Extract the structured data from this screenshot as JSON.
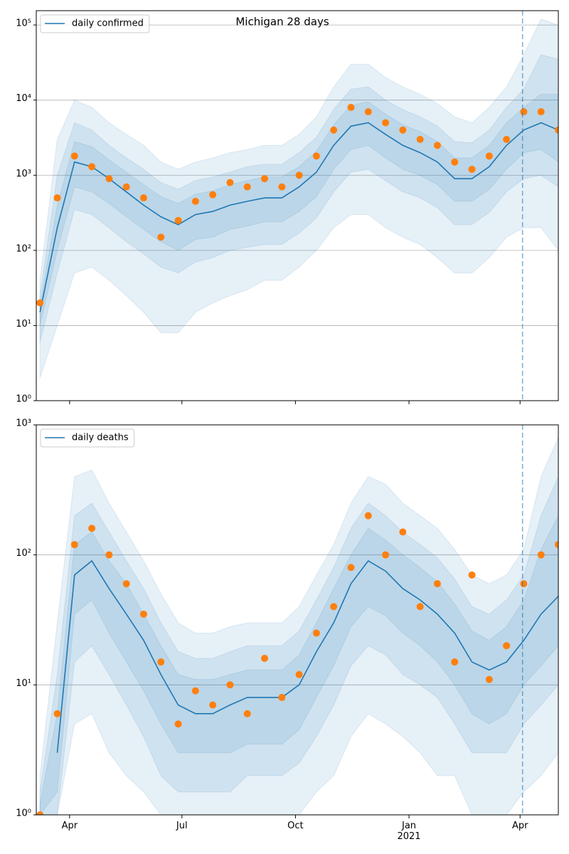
{
  "chart_data": [
    {
      "type": "line",
      "title": "Michigan 28 days",
      "log_y": true,
      "grid": true,
      "legend": "upper left",
      "sharex": true,
      "xlim": [
        -27,
        396
      ],
      "ylim": [
        1,
        155000
      ],
      "yticks": [
        {
          "value": 1,
          "label": "10⁰"
        },
        {
          "value": 10,
          "label": "10¹"
        },
        {
          "value": 100,
          "label": "10²"
        },
        {
          "value": 1000,
          "label": "10³"
        },
        {
          "value": 10000,
          "label": "10⁴"
        },
        {
          "value": 100000,
          "label": "10⁵"
        }
      ],
      "vline_x": 367,
      "x": [
        -24,
        -10,
        4,
        18,
        32,
        46,
        60,
        74,
        88,
        102,
        116,
        130,
        144,
        158,
        172,
        186,
        200,
        214,
        228,
        242,
        256,
        270,
        284,
        298,
        312,
        326,
        340,
        354,
        368,
        382,
        396
      ],
      "series": [
        {
          "name": "daily confirmed",
          "color": "#1f77b4",
          "values": [
            15,
            200,
            1500,
            1300,
            900,
            600,
            400,
            280,
            220,
            300,
            330,
            400,
            450,
            500,
            500,
            700,
            1100,
            2500,
            4500,
            5000,
            3500,
            2500,
            2000,
            1500,
            900,
            900,
            1300,
            2500,
            4000,
            5000,
            4000
          ]
        }
      ],
      "scatter": {
        "color": "#ff7f0e",
        "values": [
          20,
          500,
          1800,
          1300,
          900,
          700,
          500,
          150,
          250,
          450,
          550,
          800,
          700,
          900,
          700,
          1000,
          1800,
          4000,
          8000,
          7000,
          5000,
          4000,
          3000,
          2500,
          1500,
          1200,
          1800,
          3000,
          7000,
          7000,
          4000
        ]
      },
      "band_color": "#1f77b4",
      "bands": [
        {
          "lower": [
            2,
            10,
            50,
            60,
            40,
            25,
            15,
            8,
            8,
            15,
            20,
            25,
            30,
            40,
            40,
            60,
            100,
            200,
            300,
            300,
            200,
            150,
            120,
            80,
            50,
            50,
            80,
            150,
            200,
            200,
            100
          ],
          "upper": [
            40,
            3000,
            10000,
            8000,
            5000,
            3500,
            2500,
            1500,
            1200,
            1500,
            1700,
            2000,
            2200,
            2500,
            2500,
            3500,
            6000,
            15000,
            30000,
            30000,
            20000,
            15000,
            12000,
            9000,
            6000,
            5000,
            8000,
            15000,
            40000,
            120000,
            100000
          ]
        },
        {
          "lower": [
            6,
            50,
            350,
            300,
            200,
            130,
            90,
            60,
            50,
            70,
            80,
            100,
            110,
            120,
            120,
            170,
            270,
            600,
            1100,
            1200,
            850,
            600,
            500,
            370,
            220,
            220,
            320,
            600,
            900,
            1000,
            700
          ],
          "upper": [
            25,
            1000,
            5000,
            4000,
            2500,
            1700,
            1200,
            800,
            650,
            850,
            950,
            1100,
            1300,
            1400,
            1400,
            2000,
            3200,
            7500,
            14000,
            15000,
            10000,
            7500,
            6000,
            4500,
            2800,
            2700,
            4000,
            8000,
            14000,
            40000,
            35000
          ]
        },
        {
          "lower": [
            10,
            100,
            700,
            600,
            420,
            280,
            190,
            130,
            100,
            140,
            150,
            190,
            210,
            240,
            240,
            330,
            520,
            1200,
            2200,
            2500,
            1700,
            1200,
            1000,
            750,
            450,
            450,
            650,
            1200,
            2000,
            2200,
            1500
          ],
          "upper": [
            18,
            400,
            2800,
            2400,
            1600,
            1100,
            750,
            520,
            420,
            560,
            620,
            750,
            850,
            950,
            950,
            1300,
            2100,
            4700,
            8500,
            9500,
            6500,
            4700,
            3800,
            2800,
            1700,
            1700,
            2500,
            5000,
            8000,
            12000,
            12000
          ]
        }
      ]
    },
    {
      "type": "line",
      "log_y": true,
      "grid": true,
      "legend": "upper left",
      "xlim": [
        -27,
        396
      ],
      "ylim": [
        1,
        1000
      ],
      "xticks": [
        {
          "value": 0,
          "label": "Apr"
        },
        {
          "value": 91,
          "label": "Jul"
        },
        {
          "value": 183,
          "label": "Oct"
        },
        {
          "value": 275,
          "label": "Jan\n2021"
        },
        {
          "value": 365,
          "label": "Apr"
        }
      ],
      "yticks": [
        {
          "value": 1,
          "label": "10⁰"
        },
        {
          "value": 10,
          "label": "10¹"
        },
        {
          "value": 100,
          "label": "10²"
        },
        {
          "value": 1000,
          "label": "10³"
        }
      ],
      "vline_x": 367,
      "x": [
        -24,
        -10,
        4,
        18,
        32,
        46,
        60,
        74,
        88,
        102,
        116,
        130,
        144,
        158,
        172,
        186,
        200,
        214,
        228,
        242,
        256,
        270,
        284,
        298,
        312,
        326,
        340,
        354,
        368,
        382,
        396
      ],
      "series": [
        {
          "name": "daily deaths",
          "color": "#1f77b4",
          "values": [
            null,
            3,
            70,
            90,
            55,
            35,
            22,
            12,
            7,
            6,
            6,
            7,
            8,
            8,
            8,
            10,
            18,
            30,
            60,
            90,
            75,
            55,
            45,
            35,
            25,
            15,
            13,
            15,
            22,
            35,
            48
          ]
        }
      ],
      "scatter": {
        "color": "#ff7f0e",
        "values": [
          1,
          6,
          120,
          160,
          100,
          60,
          35,
          15,
          5,
          9,
          7,
          10,
          6,
          16,
          8,
          12,
          25,
          40,
          80,
          200,
          100,
          150,
          40,
          60,
          15,
          70,
          11,
          20,
          60,
          100,
          120
        ]
      },
      "band_color": "#1f77b4",
      "bands": [
        {
          "lower": [
            1,
            1,
            5,
            6,
            3,
            2,
            1.5,
            1,
            1,
            1,
            1,
            1,
            1,
            1,
            1,
            1,
            1.5,
            2,
            4,
            6,
            5,
            4,
            3,
            2,
            2,
            1,
            1,
            1,
            1.5,
            2,
            3
          ],
          "upper": [
            2,
            30,
            400,
            450,
            250,
            150,
            90,
            50,
            30,
            25,
            25,
            28,
            30,
            30,
            30,
            40,
            70,
            120,
            250,
            400,
            350,
            250,
            200,
            160,
            110,
            70,
            60,
            70,
            110,
            400,
            800
          ]
        },
        {
          "lower": [
            1,
            1,
            15,
            20,
            12,
            7,
            4,
            2,
            1.5,
            1.5,
            1.5,
            1.5,
            2,
            2,
            2,
            2.5,
            4,
            7,
            14,
            20,
            17,
            12,
            10,
            8,
            5,
            3,
            3,
            3,
            5,
            7,
            10
          ],
          "upper": [
            1.5,
            12,
            200,
            250,
            150,
            90,
            55,
            30,
            18,
            16,
            16,
            18,
            20,
            20,
            20,
            26,
            45,
            80,
            160,
            250,
            200,
            150,
            120,
            95,
            65,
            40,
            35,
            45,
            70,
            200,
            400
          ]
        },
        {
          "lower": [
            1,
            1.5,
            35,
            45,
            25,
            15,
            9,
            5,
            3,
            3,
            3,
            3,
            3.5,
            3.5,
            3.5,
            4.5,
            8,
            14,
            28,
            40,
            34,
            25,
            20,
            15,
            10,
            6,
            5,
            6,
            10,
            14,
            20
          ],
          "upper": [
            1.2,
            6,
            120,
            150,
            90,
            60,
            35,
            20,
            12,
            11,
            11,
            12,
            13,
            13,
            13,
            17,
            30,
            55,
            100,
            160,
            130,
            100,
            80,
            62,
            42,
            26,
            22,
            28,
            45,
            110,
            200
          ]
        }
      ]
    }
  ]
}
